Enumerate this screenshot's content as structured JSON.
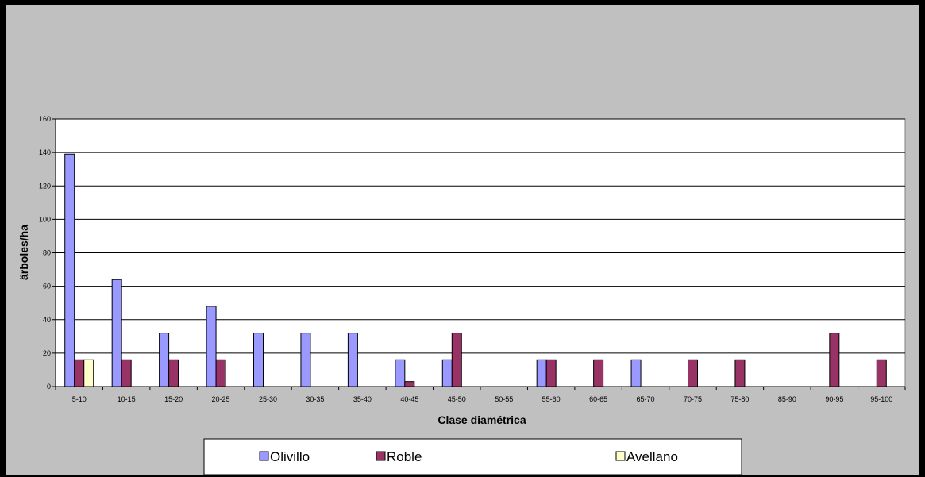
{
  "chart_data": {
    "type": "bar",
    "title": "",
    "xlabel": "Clase diamétrica",
    "ylabel": "ärboles/ha",
    "ylim": [
      0,
      160
    ],
    "yticks": [
      0,
      20,
      40,
      60,
      80,
      100,
      120,
      140,
      160
    ],
    "grid": true,
    "legend_position": "bottom",
    "categories": [
      "5-10",
      "10-15",
      "15-20",
      "20-25",
      "25-30",
      "30-35",
      "35-40",
      "40-45",
      "45-50",
      "50-55",
      "55-60",
      "60-65",
      "65-70",
      "70-75",
      "75-80",
      "85-90",
      "90-95",
      "95-100"
    ],
    "series": [
      {
        "name": "Olivillo",
        "color": "#9999ff",
        "values": [
          139,
          64,
          32,
          48,
          32,
          32,
          32,
          16,
          16,
          0,
          16,
          0,
          16,
          0,
          0,
          0,
          0,
          0
        ]
      },
      {
        "name": "Roble",
        "color": "#993366",
        "values": [
          16,
          16,
          16,
          16,
          0,
          0,
          0,
          3,
          32,
          0,
          16,
          16,
          0,
          16,
          16,
          0,
          32,
          16
        ]
      },
      {
        "name": "Avellano",
        "color": "#ffffcc",
        "values": [
          16,
          0,
          0,
          0,
          0,
          0,
          0,
          0,
          0,
          0,
          0,
          0,
          0,
          0,
          0,
          0,
          0,
          0
        ]
      }
    ]
  }
}
